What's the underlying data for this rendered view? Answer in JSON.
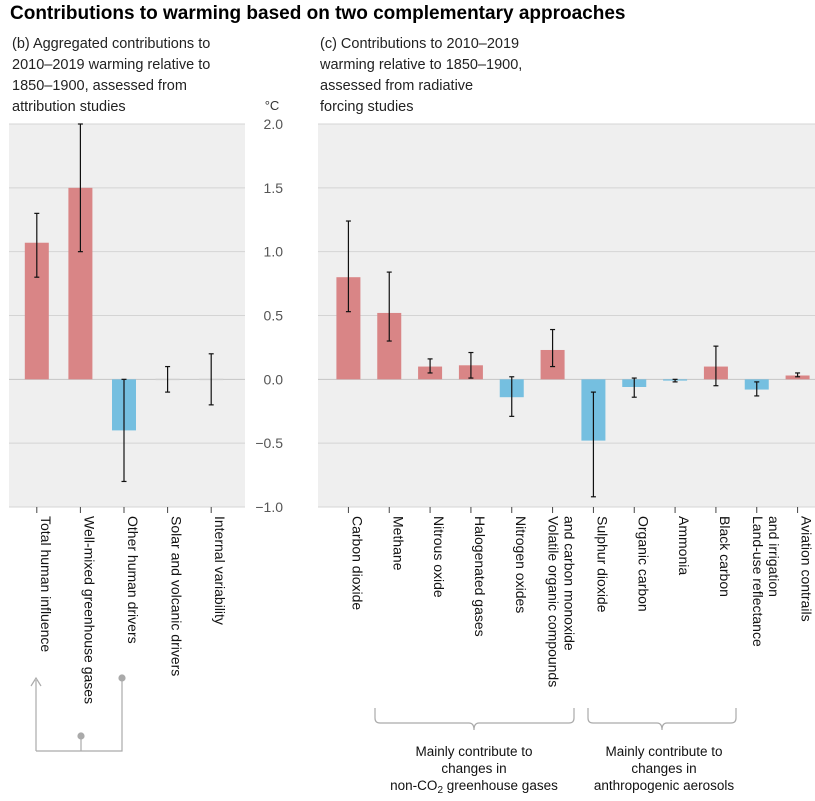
{
  "title": "Contributions to warming based on two complementary approaches",
  "unit": "°C",
  "colors": {
    "warming": "#d98586",
    "cooling": "#75bfe0",
    "panel_bg": "#efefef",
    "grid": "#d4d4d4",
    "bracket": "#aaaaaa"
  },
  "chart_data": [
    {
      "type": "bar",
      "panel": "b",
      "subtitle_lines": [
        "(b) Aggregated contributions to",
        "2010–2019 warming relative to",
        "1850–1900, assessed from",
        "attribution studies"
      ],
      "categories": [
        "Total human influence",
        "Well-mixed greenhouse gases",
        "Other human drivers",
        "Solar and volcanic drivers",
        "Internal variability"
      ],
      "values": [
        1.07,
        1.5,
        -0.4,
        0.0,
        0.0
      ],
      "error_low": [
        0.8,
        1.0,
        -0.8,
        -0.1,
        -0.2
      ],
      "error_high": [
        1.3,
        2.0,
        0.0,
        0.1,
        0.2
      ],
      "ylim": [
        -1.0,
        2.0
      ],
      "yticks": [
        "2.0",
        "1.5",
        "1.0",
        "0.5",
        "0.0",
        "−0.5",
        "−1.0"
      ],
      "grid": true
    },
    {
      "type": "bar",
      "panel": "c",
      "subtitle_lines": [
        "(c) Contributions to 2010–2019",
        "warming relative to 1850–1900,",
        "assessed from radiative",
        "forcing studies"
      ],
      "categories": [
        "Carbon dioxide",
        "Methane",
        "Nitrous oxide",
        "Halogenated gases",
        "Nitrogen oxides",
        [
          "Volatile organic compounds",
          "and carbon monoxide"
        ],
        "Sulphur dioxide",
        "Organic carbon",
        "Ammonia",
        "Black carbon",
        [
          "Land-use reflectance",
          "and irrigation"
        ],
        "Aviation contrails"
      ],
      "values": [
        0.8,
        0.52,
        0.1,
        0.11,
        -0.14,
        0.23,
        -0.48,
        -0.06,
        -0.01,
        0.1,
        -0.08,
        0.03
      ],
      "error_low": [
        0.53,
        0.3,
        0.05,
        0.01,
        -0.29,
        0.1,
        -0.92,
        -0.14,
        -0.02,
        -0.05,
        -0.13,
        0.02
      ],
      "error_high": [
        1.24,
        0.84,
        0.16,
        0.21,
        0.02,
        0.39,
        -0.1,
        0.01,
        0.0,
        0.26,
        -0.02,
        0.05
      ],
      "ylim": [
        -1.0,
        2.0
      ],
      "grid": true
    }
  ],
  "groups": {
    "ghg": {
      "line1": "Mainly contribute to",
      "line2": "changes in",
      "line3_pre": "non-CO",
      "line3_sub": "2",
      "line3_post": " greenhouse gases"
    },
    "aerosols": {
      "line1": "Mainly contribute to",
      "line2": "changes in",
      "line3": "anthropogenic aerosols"
    }
  }
}
